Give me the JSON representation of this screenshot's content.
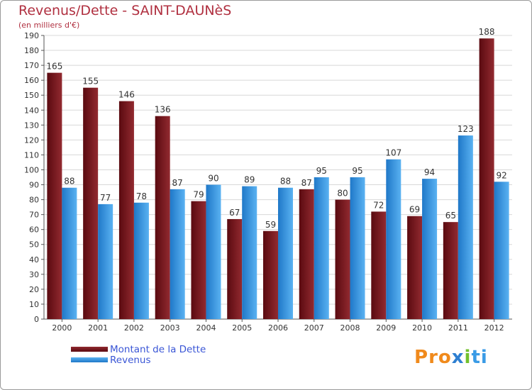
{
  "chart_data": {
    "type": "bar",
    "title": "Revenus/Dette - SAINT-DAUNèS",
    "subtitle": "(en milliers d'€)",
    "xlabel": "",
    "ylabel": "",
    "ylim": [
      0,
      190
    ],
    "ytick_step": 10,
    "yticks": [
      "0",
      "10",
      "20",
      "30",
      "40",
      "50",
      "60",
      "70",
      "80",
      "90",
      "100",
      "110",
      "120",
      "130",
      "140",
      "150",
      "160",
      "170",
      "180",
      "190"
    ],
    "categories": [
      "2000",
      "2001",
      "2002",
      "2003",
      "2004",
      "2005",
      "2006",
      "2007",
      "2008",
      "2009",
      "2010",
      "2011",
      "2012"
    ],
    "series": [
      {
        "name": "Montant de la Dette",
        "color": "#8b1c22",
        "values": [
          165,
          155,
          146,
          136,
          79,
          67,
          59,
          87,
          80,
          72,
          69,
          65,
          188
        ]
      },
      {
        "name": "Revenus",
        "color": "#3a9be6",
        "values": [
          88,
          77,
          78,
          87,
          90,
          89,
          88,
          95,
          95,
          107,
          94,
          123,
          92
        ]
      }
    ],
    "grid": true,
    "legend_position": "bottom-left"
  },
  "colors": {
    "title": "#b03040",
    "legend_text": "#3a56d6",
    "dette_dark": "#5a0a10",
    "dette_light": "#922a30",
    "revenus_dark": "#1f78c8",
    "revenus_light": "#5ab2f2"
  },
  "logo": {
    "letters": [
      "P",
      "r",
      "o",
      "x",
      "i",
      "t",
      "i"
    ],
    "colors": [
      "#f08a1c",
      "#f08a1c",
      "#f08a1c",
      "#2e7fd1",
      "#72c02c",
      "#3a9be6",
      "#3a9be6"
    ]
  }
}
